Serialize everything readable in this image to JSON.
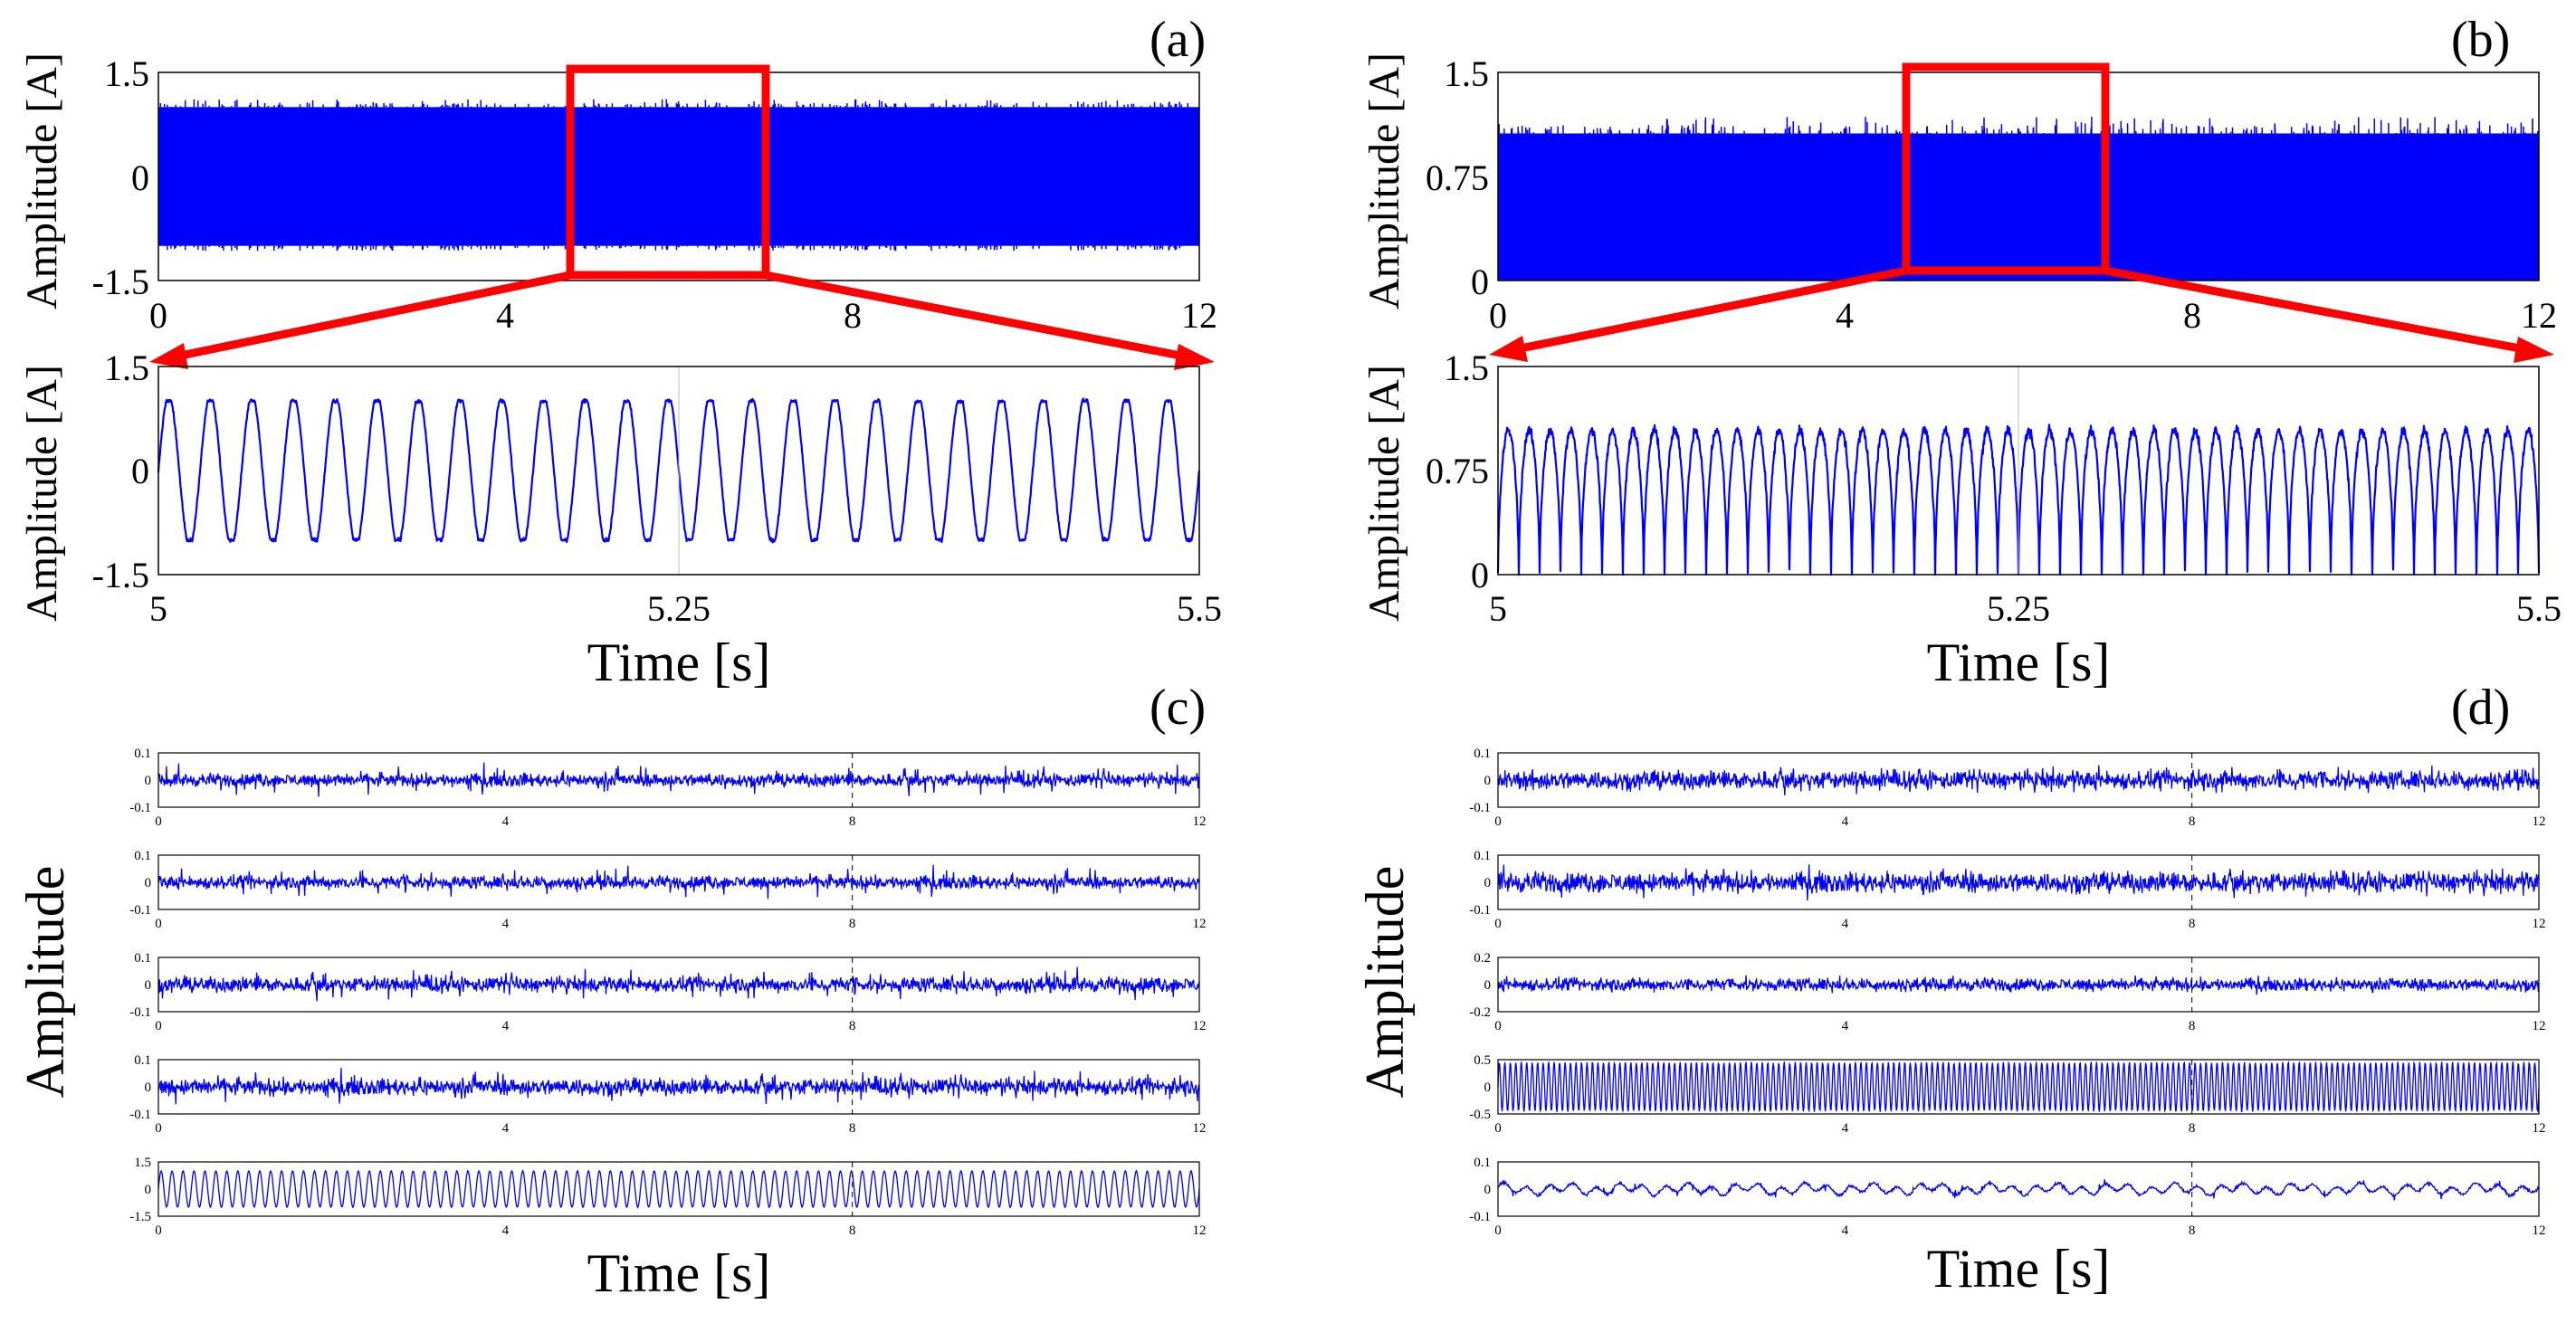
{
  "chart_data": [
    {
      "id": "a_full",
      "panel_label": "(a)",
      "type": "line",
      "title": "",
      "xlabel": "",
      "ylabel": "Amplitude [A]",
      "xlim": [
        0,
        12
      ],
      "ylim": [
        -1.5,
        1.5
      ],
      "xticks": [
        "0",
        "4",
        "8",
        "12"
      ],
      "yticks": [
        "-1.5",
        "0",
        "1.5"
      ],
      "signal": {
        "kind": "dense",
        "center": 0,
        "amplitude": 1.0,
        "spike": 0.12,
        "color": "#0000ff"
      },
      "zoom_window": [
        4.8,
        7.0
      ]
    },
    {
      "id": "a_zoom",
      "type": "line",
      "xlabel": "Time [s]",
      "ylabel": "Amplitude [A]",
      "xlim": [
        5,
        5.5
      ],
      "ylim": [
        -1.5,
        1.5
      ],
      "xticks": [
        "5",
        "5.25",
        "5.5"
      ],
      "yticks": [
        "-1.5",
        "0",
        "1.5"
      ],
      "signal": {
        "kind": "sine",
        "freq_hz": 50,
        "center": 0,
        "amplitude": 1.0,
        "color": "#0000ff"
      }
    },
    {
      "id": "b_full",
      "panel_label": "(b)",
      "type": "line",
      "xlabel": "",
      "ylabel": "Amplitude [A]",
      "xlim": [
        0,
        12
      ],
      "ylim": [
        0,
        1.5
      ],
      "xticks": [
        "0",
        "4",
        "8",
        "12"
      ],
      "yticks": [
        "0",
        "0.75",
        "1.5"
      ],
      "signal": {
        "kind": "dense",
        "center": 0.53,
        "amplitude": 0.53,
        "spike": 0.12,
        "color": "#0000ff"
      },
      "zoom_window": [
        4.6,
        7.0
      ]
    },
    {
      "id": "b_zoom",
      "type": "line",
      "xlabel": "Time [s]",
      "ylabel": "Amplitude [A]",
      "xlim": [
        5,
        5.5
      ],
      "ylim": [
        0,
        1.5
      ],
      "xticks": [
        "5",
        "5.25",
        "5.5"
      ],
      "yticks": [
        "0",
        "0.75",
        "1.5"
      ],
      "signal": {
        "kind": "rect",
        "freq_hz": 100,
        "center": 0.52,
        "amplitude": 0.52,
        "color": "#0000ff"
      }
    },
    {
      "id": "c",
      "panel_label": "(c)",
      "type": "line",
      "xlabel": "Time [s]",
      "ylabel": "Amplitude",
      "xlim": [
        0,
        12
      ],
      "xticks": [
        "0",
        "4",
        "8",
        "12"
      ],
      "subplots": [
        {
          "ylim": [
            -0.1,
            0.1
          ],
          "yticks": [
            "-0.1",
            "0",
            "0.1"
          ],
          "signal": {
            "kind": "noise",
            "amplitude": 0.035,
            "spike": 0.05
          }
        },
        {
          "ylim": [
            -0.1,
            0.1
          ],
          "yticks": [
            "-0.1",
            "0",
            "0.1"
          ],
          "signal": {
            "kind": "noise",
            "amplitude": 0.035,
            "spike": 0.05
          }
        },
        {
          "ylim": [
            -0.1,
            0.1
          ],
          "yticks": [
            "-0.1",
            "0",
            "0.1"
          ],
          "signal": {
            "kind": "noise",
            "amplitude": 0.04,
            "spike": 0.05
          }
        },
        {
          "ylim": [
            -0.1,
            0.1
          ],
          "yticks": [
            "-0.1",
            "0",
            "0.1"
          ],
          "signal": {
            "kind": "noise",
            "amplitude": 0.045,
            "spike": 0.05
          }
        },
        {
          "ylim": [
            -1.5,
            1.5
          ],
          "yticks": [
            "-1.5",
            "0",
            "1.5"
          ],
          "signal": {
            "kind": "osc",
            "cycles": 95,
            "amplitude": 1.0
          }
        }
      ]
    },
    {
      "id": "d",
      "panel_label": "(d)",
      "type": "line",
      "xlabel": "Time [s]",
      "ylabel": "Amplitude",
      "xlim": [
        0,
        12
      ],
      "xticks": [
        "0",
        "4",
        "8",
        "12"
      ],
      "subplots": [
        {
          "ylim": [
            -0.1,
            0.1
          ],
          "yticks": [
            "-0.1",
            "0",
            "0.1"
          ],
          "signal": {
            "kind": "noise",
            "amplitude": 0.05,
            "spike": 0.04
          }
        },
        {
          "ylim": [
            -0.1,
            0.1
          ],
          "yticks": [
            "-0.1",
            "0",
            "0.1"
          ],
          "signal": {
            "kind": "noise",
            "amplitude": 0.055,
            "spike": 0.04
          }
        },
        {
          "ylim": [
            -0.2,
            0.2
          ],
          "yticks": [
            "-0.2",
            "0",
            "0.2"
          ],
          "signal": {
            "kind": "noise",
            "amplitude": 0.07,
            "spike": 0.03
          }
        },
        {
          "ylim": [
            -0.5,
            0.5
          ],
          "yticks": [
            "-0.5",
            "0",
            "0.5"
          ],
          "signal": {
            "kind": "osc",
            "cycles": 190,
            "amplitude": 0.45
          }
        },
        {
          "ylim": [
            -0.1,
            0.1
          ],
          "yticks": [
            "-0.1",
            "0",
            "0.1"
          ],
          "signal": {
            "kind": "lowfreq",
            "amplitude": 0.015,
            "spike": 0.02
          }
        }
      ]
    }
  ],
  "colors": {
    "signal": "#0000ff",
    "highlight": "#ff0000",
    "axis": "#000000"
  }
}
